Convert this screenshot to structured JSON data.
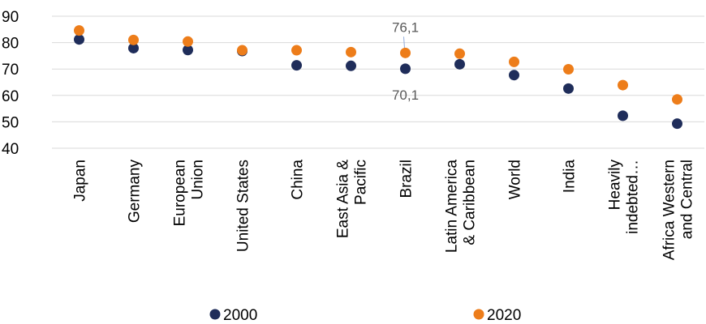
{
  "chart_data": {
    "type": "scatter",
    "categories": [
      [
        "Japan"
      ],
      [
        "Germany"
      ],
      [
        "European",
        "Union"
      ],
      [
        "United States"
      ],
      [
        "China"
      ],
      [
        "East Asia &",
        "Pacific"
      ],
      [
        "Brazil"
      ],
      [
        "Latin America",
        "& Caribbean"
      ],
      [
        "World"
      ],
      [
        "India"
      ],
      [
        "Heavily",
        "indebted…"
      ],
      [
        "Africa Western",
        "and Central"
      ]
    ],
    "series": [
      {
        "name": "2000",
        "color": "#1f2d5a",
        "values": [
          81.2,
          77.9,
          77.2,
          76.8,
          71.4,
          71.2,
          70.1,
          71.8,
          67.7,
          62.6,
          52.3,
          49.3
        ]
      },
      {
        "name": "2020",
        "color": "#ed7d1a",
        "values": [
          84.6,
          81.0,
          80.4,
          77.1,
          77.1,
          76.4,
          76.1,
          75.8,
          72.7,
          69.9,
          63.9,
          58.5
        ]
      }
    ],
    "annotations": [
      {
        "category_index": 6,
        "series": "2020",
        "text": "76,1"
      },
      {
        "category_index": 6,
        "series": "2000",
        "text": "70,1"
      }
    ],
    "ylim": [
      40,
      90
    ],
    "yticks": [
      40,
      50,
      60,
      70,
      80,
      90
    ],
    "grid": true,
    "legend_position": "bottom",
    "xlabel": "",
    "ylabel": "",
    "title": ""
  }
}
